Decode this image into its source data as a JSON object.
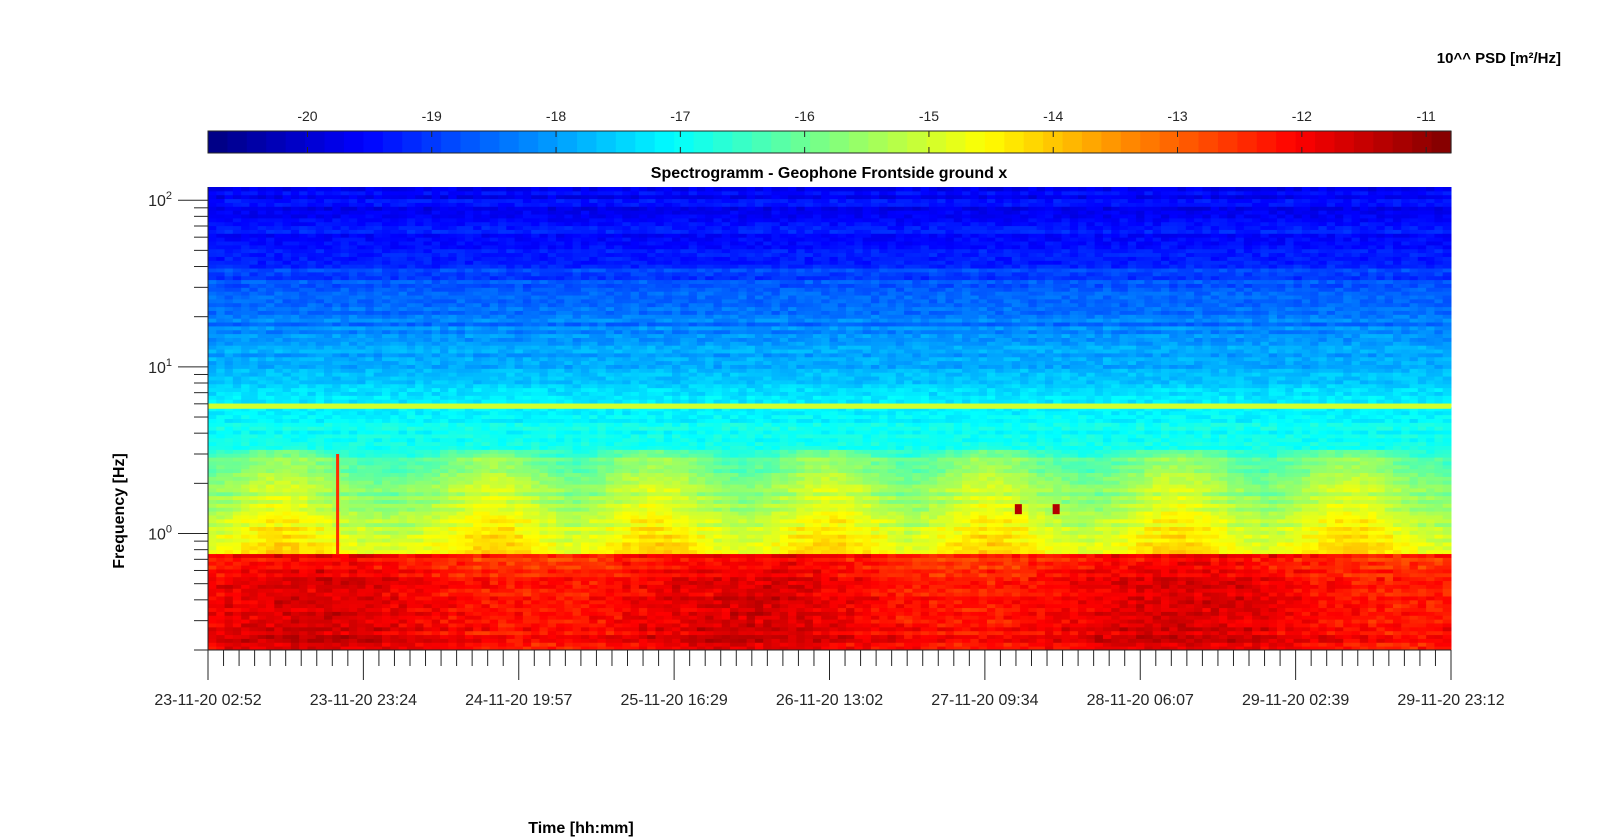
{
  "chart_data": {
    "type": "heatmap",
    "title": "Spectrogramm - Geophone Frontside ground x",
    "xlabel": "Time [hh:mm]",
    "ylabel": "Frequency [Hz]",
    "colorbar": {
      "label": "10^^ PSD [m²/Hz]",
      "range": [
        -20.8,
        -10.8
      ],
      "ticks": [
        "-20",
        "-19",
        "-18",
        "-17",
        "-16",
        "-15",
        "-14",
        "-13",
        "-12",
        "-11"
      ],
      "tick_values": [
        -20,
        -19,
        -18,
        -17,
        -16,
        -15,
        -14,
        -13,
        -12,
        -11
      ],
      "colormap": "jet"
    },
    "y_scale": "log",
    "ylim": [
      0.2,
      120
    ],
    "y_ticks": [
      {
        "value": 1,
        "base": "10",
        "exp": "0"
      },
      {
        "value": 10,
        "base": "10",
        "exp": "1"
      },
      {
        "value": 100,
        "base": "10",
        "exp": "2"
      }
    ],
    "x_ticks": [
      "23-11-20 02:52",
      "23-11-20 23:24",
      "24-11-20 19:57",
      "25-11-20 16:29",
      "26-11-20 13:02",
      "27-11-20 09:34",
      "28-11-20 06:07",
      "29-11-20 02:39",
      "29-11-20 23:12"
    ],
    "features": [
      {
        "kind": "band",
        "frequency": 5.8,
        "level": -15
      },
      {
        "kind": "low_frequency_energy",
        "frequency_range": [
          0.2,
          0.75
        ],
        "level": -12.2
      },
      {
        "kind": "transient",
        "time": "23-11-20 20:00",
        "frequency_range": [
          0.75,
          3
        ],
        "level": -12.5
      },
      {
        "kind": "burst",
        "time": "27-11-20 14:00",
        "frequency": 1.4,
        "level": -11.3
      },
      {
        "kind": "burst",
        "time": "27-11-20 19:00",
        "frequency": 1.4,
        "level": -11.3
      }
    ]
  }
}
